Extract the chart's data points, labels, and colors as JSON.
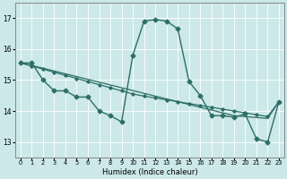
{
  "background_color": "#cce8e8",
  "grid_color": "#b0d8d8",
  "line_color": "#2e6e68",
  "xlabel": "Humidex (Indice chaleur)",
  "xlim": [
    -0.5,
    23.5
  ],
  "ylim": [
    12.5,
    17.5
  ],
  "yticks": [
    13,
    14,
    15,
    16,
    17
  ],
  "xticks": [
    0,
    1,
    2,
    3,
    4,
    5,
    6,
    7,
    8,
    9,
    10,
    11,
    12,
    13,
    14,
    15,
    16,
    17,
    18,
    19,
    20,
    21,
    22,
    23
  ],
  "main_series": [
    15.55,
    15.55,
    15.0,
    14.65,
    14.65,
    14.45,
    14.45,
    14.0,
    13.85,
    13.65,
    15.8,
    16.9,
    16.95,
    16.9,
    16.65,
    14.95,
    14.5,
    13.85,
    13.85,
    13.8,
    13.9,
    13.1,
    13.0,
    14.3
  ],
  "trend1": [
    15.55,
    15.45,
    15.35,
    15.25,
    15.15,
    15.05,
    14.95,
    14.85,
    14.75,
    14.65,
    14.55,
    14.48,
    14.42,
    14.36,
    14.3,
    14.24,
    14.18,
    14.12,
    14.06,
    14.0,
    13.94,
    13.88,
    13.82,
    14.3
  ],
  "trend2": [
    15.55,
    15.47,
    15.38,
    15.29,
    15.2,
    15.11,
    15.02,
    14.93,
    14.84,
    14.75,
    14.66,
    14.57,
    14.48,
    14.39,
    14.3,
    14.21,
    14.12,
    14.03,
    13.94,
    13.85,
    13.82,
    13.79,
    13.76,
    14.3
  ]
}
